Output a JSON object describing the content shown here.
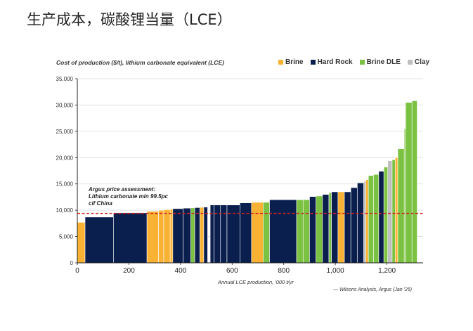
{
  "page_title": "生产成本，碳酸锂当量（LCE）",
  "chart_data": {
    "type": "bar",
    "subtype": "cost-curve",
    "title": "Cost of production ($/t), lithium carbonate equivalent (LCE)",
    "xlabel": "Annual LCE production, '000 t/yr",
    "ylabel": "",
    "xlim": [
      0,
      1340
    ],
    "ylim": [
      0,
      35000
    ],
    "x_ticks": [
      0,
      200,
      400,
      600,
      800,
      1000,
      1200
    ],
    "x_tick_labels": [
      "0",
      "200",
      "400",
      "600",
      "800",
      "1,000",
      "1,200"
    ],
    "y_ticks": [
      0,
      5000,
      10000,
      15000,
      20000,
      25000,
      30000,
      35000
    ],
    "y_tick_labels": [
      "0",
      "5,000",
      "10,000",
      "15,000",
      "20,000",
      "25,000",
      "30,000",
      "35,000"
    ],
    "grid": "horizontal",
    "legend_position": "top-right",
    "series": [
      {
        "name": "Brine",
        "color": "#F9B233"
      },
      {
        "name": "Hard Rock",
        "color": "#0B1F4F"
      },
      {
        "name": "Brine DLE",
        "color": "#7CC242"
      },
      {
        "name": "Clay",
        "color": "#BFBFBF"
      }
    ],
    "bars": [
      {
        "type": "Brine",
        "x_start": 0,
        "width": 30,
        "value": 7700
      },
      {
        "type": "Hard Rock",
        "x_start": 30,
        "width": 110,
        "value": 8700
      },
      {
        "type": "Hard Rock",
        "x_start": 140,
        "width": 130,
        "value": 9500
      },
      {
        "type": "Brine",
        "x_start": 270,
        "width": 45,
        "value": 9800
      },
      {
        "type": "Brine",
        "x_start": 315,
        "width": 20,
        "value": 10000
      },
      {
        "type": "Brine",
        "x_start": 335,
        "width": 25,
        "value": 10100
      },
      {
        "type": "Brine",
        "x_start": 360,
        "width": 10,
        "value": 10200
      },
      {
        "type": "Hard Rock",
        "x_start": 370,
        "width": 40,
        "value": 10300
      },
      {
        "type": "Hard Rock",
        "x_start": 410,
        "width": 30,
        "value": 10400
      },
      {
        "type": "Brine DLE",
        "x_start": 440,
        "width": 15,
        "value": 10450
      },
      {
        "type": "Hard Rock",
        "x_start": 455,
        "width": 20,
        "value": 10500
      },
      {
        "type": "Brine",
        "x_start": 475,
        "width": 15,
        "value": 10550
      },
      {
        "type": "Hard Rock",
        "x_start": 490,
        "width": 15,
        "value": 10600
      },
      {
        "type": "Hard Rock",
        "x_start": 515,
        "width": 15,
        "value": 11000
      },
      {
        "type": "Hard Rock",
        "x_start": 530,
        "width": 25,
        "value": 11000
      },
      {
        "type": "Hard Rock",
        "x_start": 555,
        "width": 25,
        "value": 11000
      },
      {
        "type": "Hard Rock",
        "x_start": 580,
        "width": 50,
        "value": 11000
      },
      {
        "type": "Hard Rock",
        "x_start": 630,
        "width": 45,
        "value": 11400
      },
      {
        "type": "Brine",
        "x_start": 675,
        "width": 45,
        "value": 11500
      },
      {
        "type": "Brine DLE",
        "x_start": 720,
        "width": 25,
        "value": 11500
      },
      {
        "type": "Hard Rock",
        "x_start": 745,
        "width": 105,
        "value": 12000
      },
      {
        "type": "Brine DLE",
        "x_start": 850,
        "width": 25,
        "value": 12000
      },
      {
        "type": "Brine DLE",
        "x_start": 875,
        "width": 25,
        "value": 12000
      },
      {
        "type": "Hard Rock",
        "x_start": 900,
        "width": 25,
        "value": 12600
      },
      {
        "type": "Brine DLE",
        "x_start": 925,
        "width": 25,
        "value": 12700
      },
      {
        "type": "Hard Rock",
        "x_start": 950,
        "width": 25,
        "value": 13000
      },
      {
        "type": "Brine DLE",
        "x_start": 975,
        "width": 10,
        "value": 13300
      },
      {
        "type": "Hard Rock",
        "x_start": 985,
        "width": 25,
        "value": 13500
      },
      {
        "type": "Brine",
        "x_start": 1010,
        "width": 25,
        "value": 13500
      },
      {
        "type": "Hard Rock",
        "x_start": 1035,
        "width": 25,
        "value": 13500
      },
      {
        "type": "Hard Rock",
        "x_start": 1060,
        "width": 25,
        "value": 14300
      },
      {
        "type": "Hard Rock",
        "x_start": 1085,
        "width": 25,
        "value": 15200
      },
      {
        "type": "Clay",
        "x_start": 1110,
        "width": 8,
        "value": 15500
      },
      {
        "type": "Brine",
        "x_start": 1118,
        "width": 10,
        "value": 15800
      },
      {
        "type": "Brine DLE",
        "x_start": 1128,
        "width": 20,
        "value": 16600
      },
      {
        "type": "Brine DLE",
        "x_start": 1148,
        "width": 20,
        "value": 16800
      },
      {
        "type": "Hard Rock",
        "x_start": 1168,
        "width": 20,
        "value": 17400
      },
      {
        "type": "Brine DLE",
        "x_start": 1188,
        "width": 15,
        "value": 18200
      },
      {
        "type": "Clay",
        "x_start": 1203,
        "width": 17,
        "value": 19400
      },
      {
        "type": "Brine DLE",
        "x_start": 1220,
        "width": 12,
        "value": 19600
      },
      {
        "type": "Brine",
        "x_start": 1232,
        "width": 10,
        "value": 20000
      },
      {
        "type": "Brine DLE",
        "x_start": 1242,
        "width": 25,
        "value": 21700
      },
      {
        "type": "Brine DLE",
        "x_start": 1267,
        "width": 5,
        "value": 25500
      },
      {
        "type": "Brine DLE",
        "x_start": 1272,
        "width": 25,
        "value": 30500
      },
      {
        "type": "Brine DLE",
        "x_start": 1297,
        "width": 20,
        "value": 30800
      }
    ],
    "reference_line": {
      "value": 9400,
      "color": "#D32020",
      "label_lines": [
        "Argus price assessment:",
        "Lithium carbonate min 99.5pc",
        "cif China"
      ]
    },
    "source": "— Wilsons Analysis, Argus (Jan '25)"
  }
}
